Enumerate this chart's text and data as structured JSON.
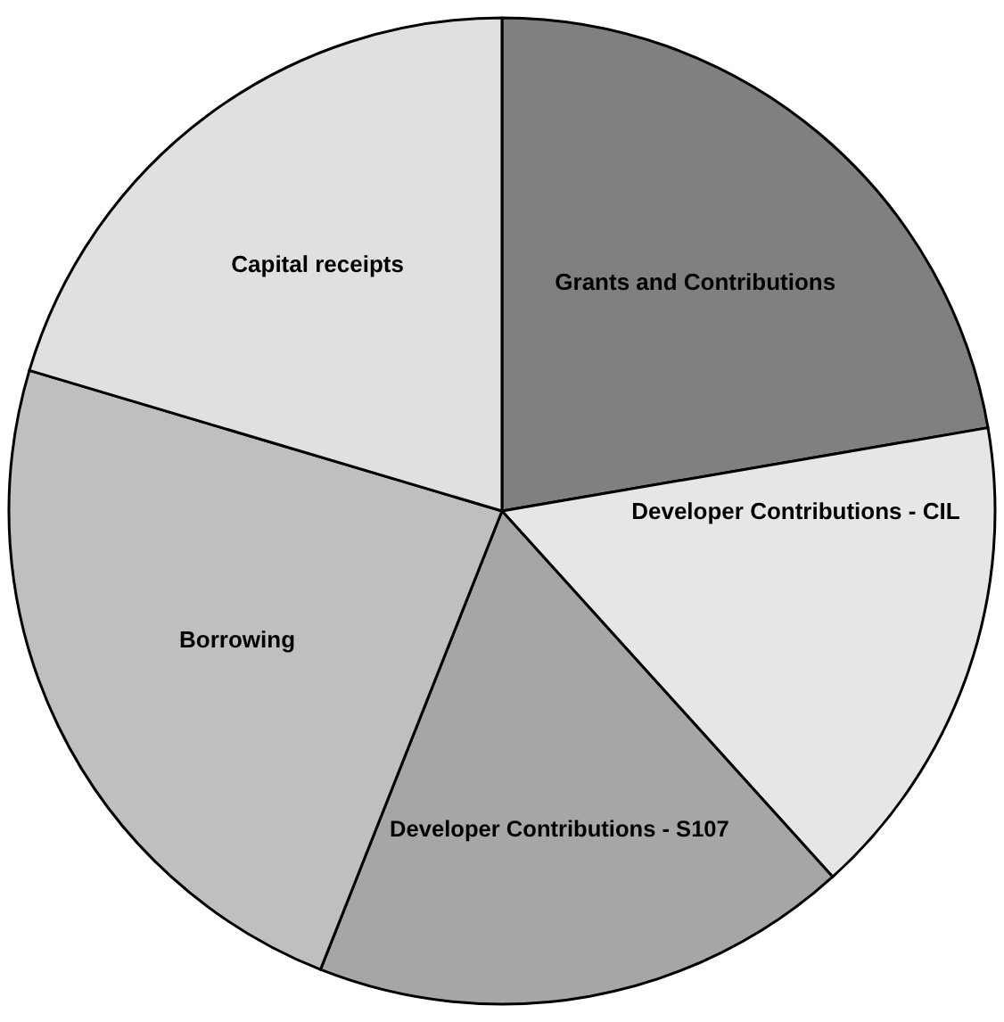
{
  "chart_data": {
    "type": "pie",
    "categories": [
      "Grants and Contributions",
      "Developer Contributions - CIL",
      "Developer Contributions - S107",
      "Borrowing",
      "Capital receipts"
    ],
    "values": [
      22.3,
      16,
      17.7,
      23.6,
      20.4
    ],
    "colors": [
      "#808080",
      "#e6e6e6",
      "#a6a6a6",
      "#bfbfbf",
      "#e0e0e0"
    ],
    "legend": false
  }
}
